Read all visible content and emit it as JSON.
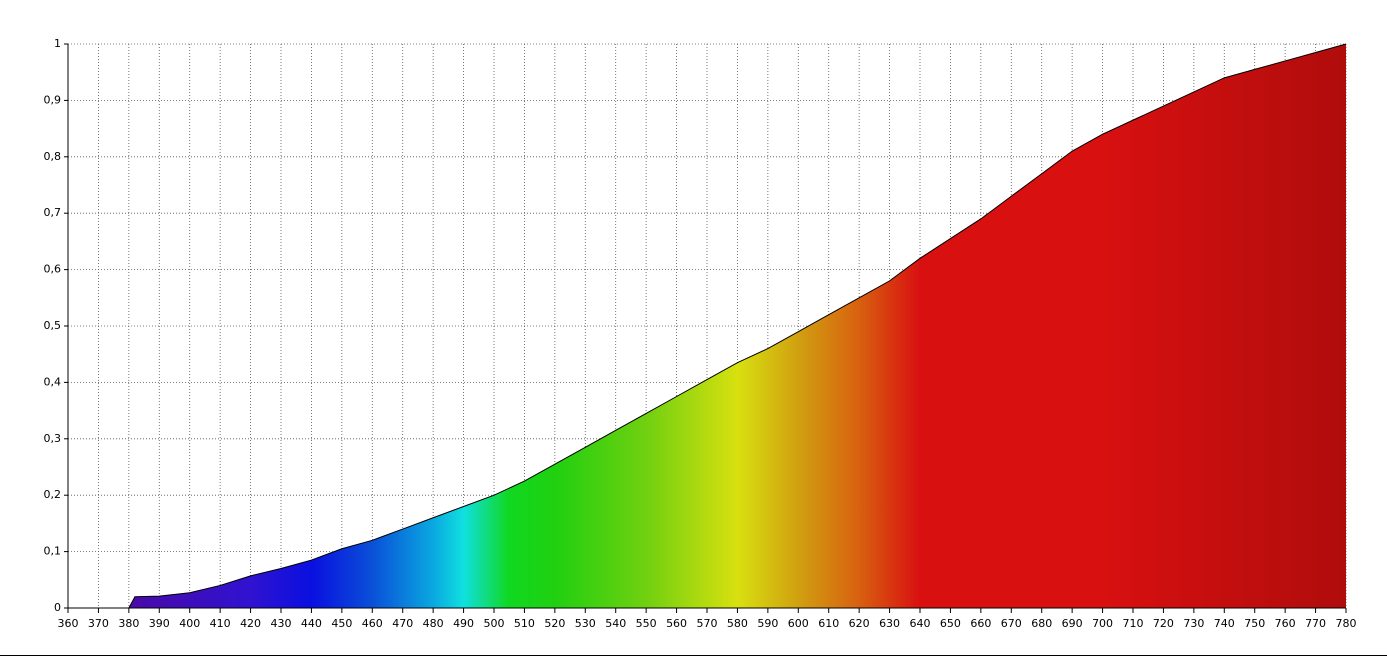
{
  "chart_data": {
    "type": "area",
    "x": [
      360,
      370,
      380,
      382,
      390,
      400,
      410,
      420,
      430,
      440,
      450,
      460,
      470,
      480,
      490,
      500,
      510,
      520,
      530,
      540,
      550,
      560,
      570,
      580,
      590,
      600,
      610,
      620,
      630,
      640,
      650,
      660,
      670,
      680,
      690,
      700,
      710,
      720,
      730,
      740,
      750,
      760,
      770,
      780
    ],
    "values": [
      0,
      0,
      0,
      0.02,
      0.021,
      0.027,
      0.04,
      0.057,
      0.07,
      0.085,
      0.105,
      0.12,
      0.14,
      0.16,
      0.18,
      0.2,
      0.225,
      0.255,
      0.285,
      0.315,
      0.345,
      0.375,
      0.405,
      0.435,
      0.46,
      0.49,
      0.52,
      0.55,
      0.58,
      0.62,
      0.655,
      0.69,
      0.73,
      0.77,
      0.81,
      0.84,
      0.865,
      0.89,
      0.915,
      0.94,
      0.955,
      0.97,
      0.985,
      1.0
    ],
    "xlim": [
      360,
      780
    ],
    "xticks": [
      360,
      370,
      380,
      390,
      400,
      410,
      420,
      430,
      440,
      450,
      460,
      470,
      480,
      490,
      500,
      510,
      520,
      530,
      540,
      550,
      560,
      570,
      580,
      590,
      600,
      610,
      620,
      630,
      640,
      650,
      660,
      670,
      680,
      690,
      700,
      710,
      720,
      730,
      740,
      750,
      760,
      770,
      780
    ],
    "ylim": [
      0,
      1
    ],
    "yticks": [
      0,
      {
        "value": 0.1,
        "label": "0,1"
      },
      {
        "value": 0.2,
        "label": "0,2"
      },
      {
        "value": 0.3,
        "label": "0,3"
      },
      {
        "value": 0.4,
        "label": "0,4"
      },
      {
        "value": 0.5,
        "label": "0,5"
      },
      {
        "value": 0.6,
        "label": "0,6"
      },
      {
        "value": 0.7,
        "label": "0,7"
      },
      {
        "value": 0.8,
        "label": "0,8"
      },
      {
        "value": 0.9,
        "label": "0,9"
      },
      1
    ],
    "grid": true
  }
}
